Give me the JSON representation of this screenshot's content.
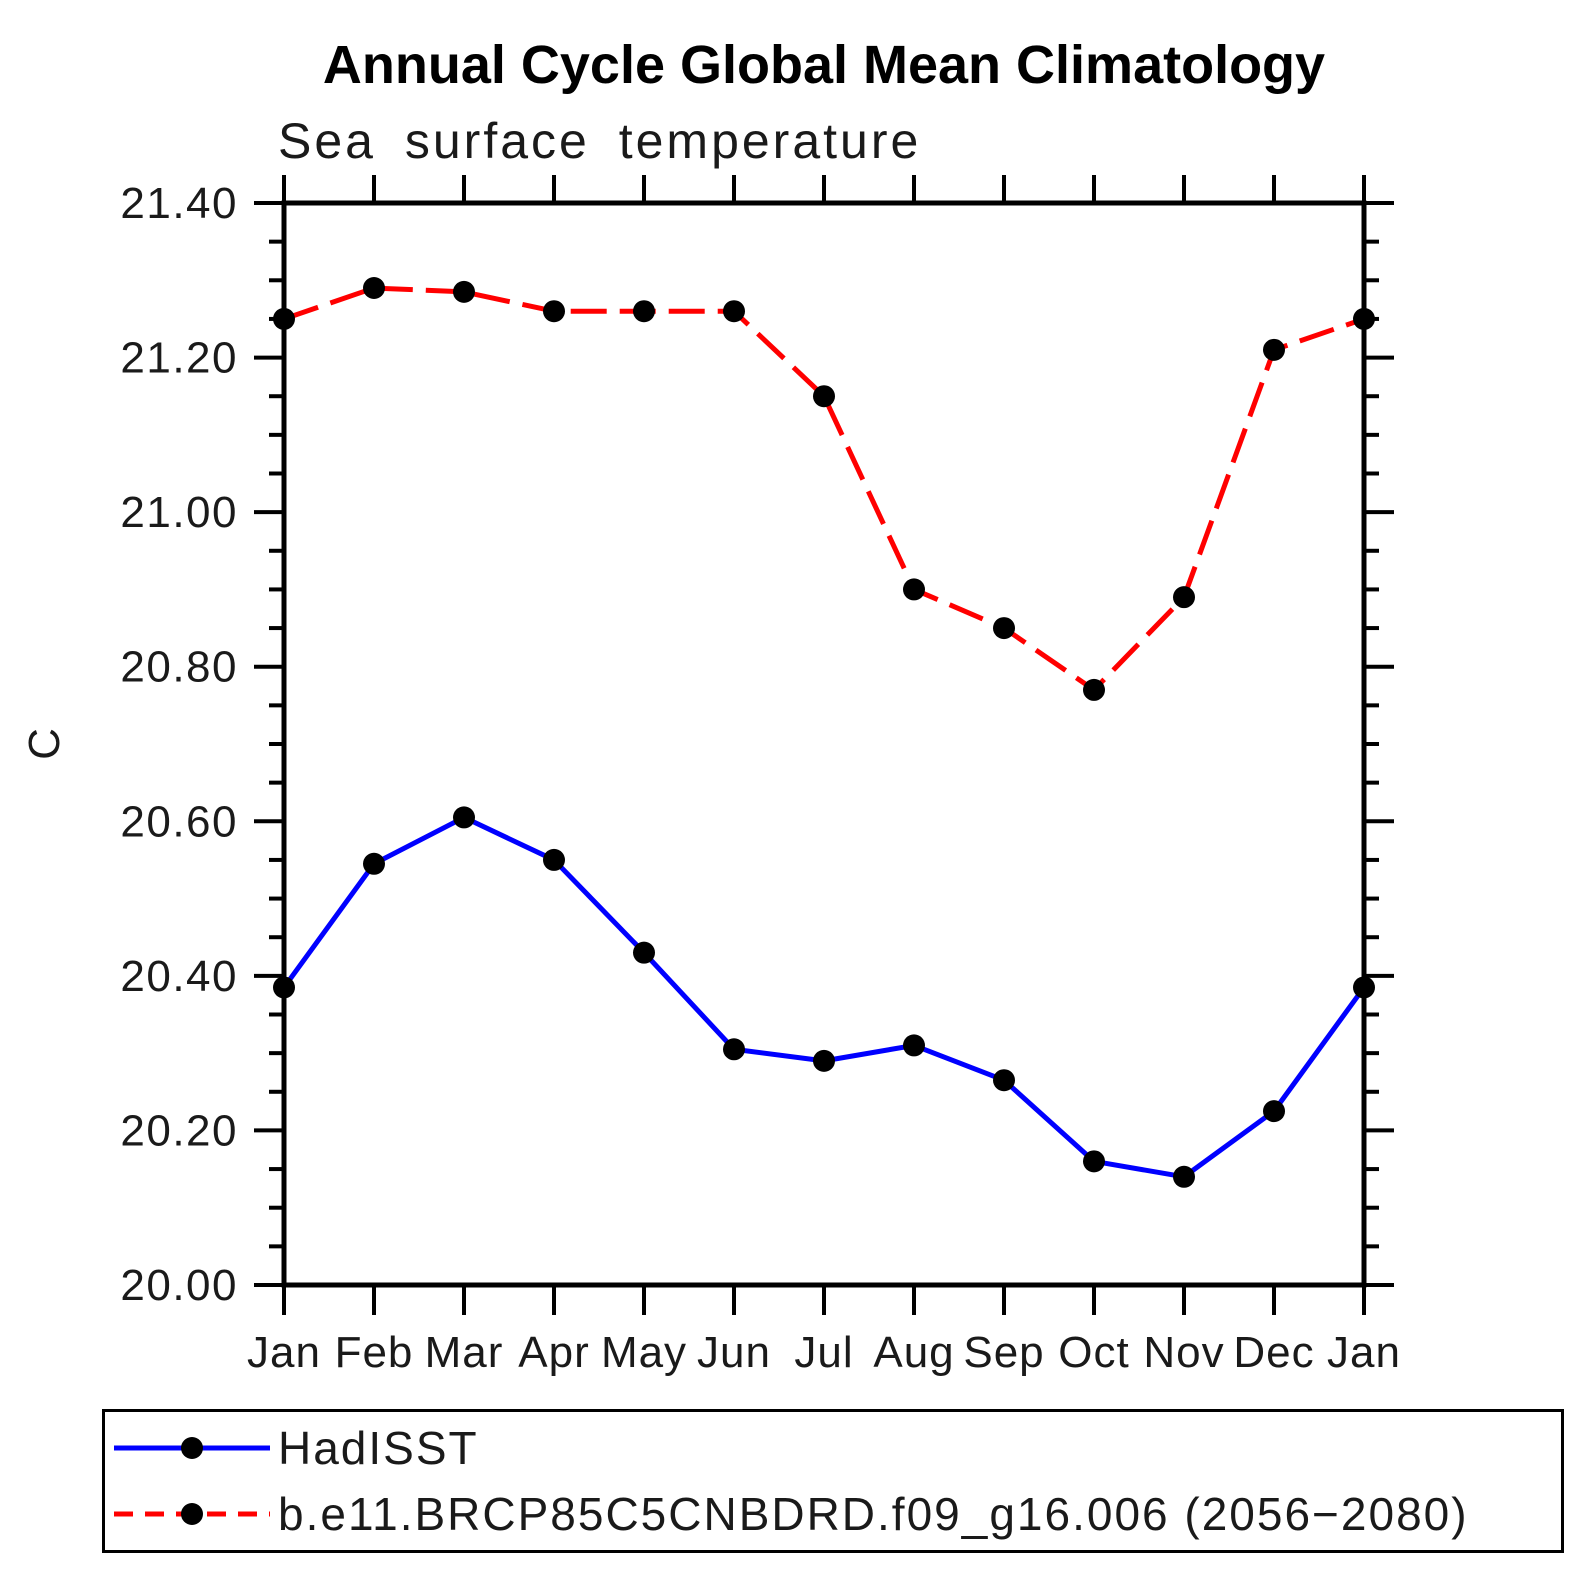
{
  "chart_data": {
    "type": "line",
    "title": "Annual Cycle Global Mean Climatology",
    "subtitle": "Sea surface temperature",
    "ylabel": "C",
    "ylim": [
      20.0,
      21.4
    ],
    "y_tick_labels": [
      "20.00",
      "20.20",
      "20.40",
      "20.60",
      "20.80",
      "21.00",
      "21.20",
      "21.40"
    ],
    "y_minor_tick_step": 0.05,
    "categories": [
      "Jan",
      "Feb",
      "Mar",
      "Apr",
      "May",
      "Jun",
      "Jul",
      "Aug",
      "Sep",
      "Oct",
      "Nov",
      "Dec",
      "Jan"
    ],
    "grid": false,
    "legend_position": "bottom-left",
    "axis_color": "#000000",
    "marker_color": "#000000",
    "series": [
      {
        "name": "HadISST",
        "color": "#0000ff",
        "line_style": "solid",
        "marker": "circle",
        "values": [
          20.385,
          20.545,
          20.605,
          20.55,
          20.43,
          20.305,
          20.29,
          20.31,
          20.265,
          20.16,
          20.14,
          20.225,
          20.385
        ]
      },
      {
        "name": "b.e11.BRCP85C5CNBDRD.f09_g16.006 (2056−2080)",
        "color": "#ff0000",
        "line_style": "dashed",
        "marker": "circle",
        "values": [
          21.25,
          21.29,
          21.285,
          21.26,
          21.26,
          21.26,
          21.15,
          20.9,
          20.85,
          20.77,
          20.89,
          21.21,
          21.25
        ]
      }
    ]
  }
}
